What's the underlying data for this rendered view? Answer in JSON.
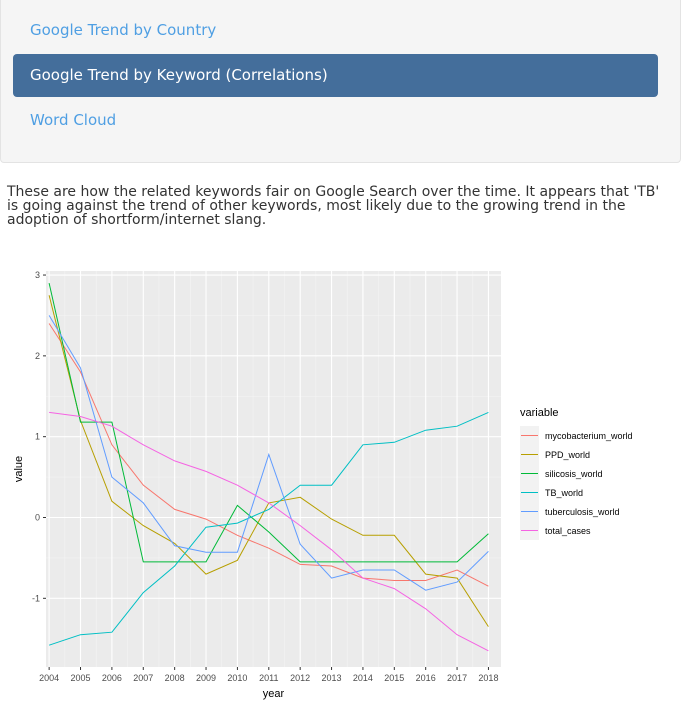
{
  "nav": {
    "items": [
      {
        "label": "Google Trend by Country",
        "active": false
      },
      {
        "label": "Google Trend by Keyword (Correlations)",
        "active": true
      },
      {
        "label": "Word Cloud",
        "active": false
      }
    ]
  },
  "intro": {
    "text": "These are how the related keywords fair on Google Search over the time. It appears that 'TB' is going against the trend of other keywords, most likely due to the growing trend in the adoption of shortform/internet slang."
  },
  "chart_data": {
    "type": "line",
    "title": "",
    "xlabel": "year",
    "ylabel": "value",
    "x": [
      2004,
      2005,
      2006,
      2007,
      2008,
      2009,
      2010,
      2011,
      2012,
      2013,
      2014,
      2015,
      2016,
      2017,
      2018
    ],
    "xlim": [
      2003.9,
      2018.4
    ],
    "ylim": [
      -1.85,
      3.05
    ],
    "yticks": [
      -1,
      0,
      1,
      2,
      3
    ],
    "grid": true,
    "legend": {
      "title": "variable",
      "position": "right"
    },
    "series": [
      {
        "name": "mycobacterium_world",
        "color": "#F8766D",
        "values": [
          2.4,
          1.8,
          0.9,
          0.4,
          0.1,
          -0.02,
          -0.22,
          -0.38,
          -0.58,
          -0.6,
          -0.75,
          -0.78,
          -0.78,
          -0.65,
          -0.85
        ]
      },
      {
        "name": "PPD_world",
        "color": "#B79F00",
        "values": [
          2.75,
          1.2,
          0.2,
          -0.1,
          -0.32,
          -0.7,
          -0.53,
          0.18,
          0.25,
          -0.02,
          -0.22,
          -0.22,
          -0.7,
          -0.75,
          -1.35
        ]
      },
      {
        "name": "silicosis_world",
        "color": "#00BA38",
        "values": [
          2.9,
          1.18,
          1.18,
          -0.55,
          -0.55,
          -0.55,
          0.15,
          -0.18,
          -0.55,
          -0.55,
          -0.55,
          -0.55,
          -0.55,
          -0.55,
          -0.2
        ]
      },
      {
        "name": "TB_world",
        "color": "#00BFC4",
        "values": [
          -1.58,
          -1.45,
          -1.42,
          -0.93,
          -0.6,
          -0.12,
          -0.07,
          0.1,
          0.4,
          0.4,
          0.9,
          0.93,
          1.08,
          1.13,
          1.3
        ]
      },
      {
        "name": "tuberculosis_world",
        "color": "#619CFF",
        "values": [
          2.5,
          1.85,
          0.5,
          0.18,
          -0.35,
          -0.43,
          -0.43,
          0.78,
          -0.33,
          -0.75,
          -0.65,
          -0.65,
          -0.9,
          -0.8,
          -0.42
        ]
      },
      {
        "name": "total_cases",
        "color": "#F564E3",
        "values": [
          1.3,
          1.25,
          1.13,
          0.9,
          0.7,
          0.57,
          0.4,
          0.18,
          -0.1,
          -0.4,
          -0.75,
          -0.88,
          -1.13,
          -1.45,
          -1.65
        ]
      }
    ]
  }
}
